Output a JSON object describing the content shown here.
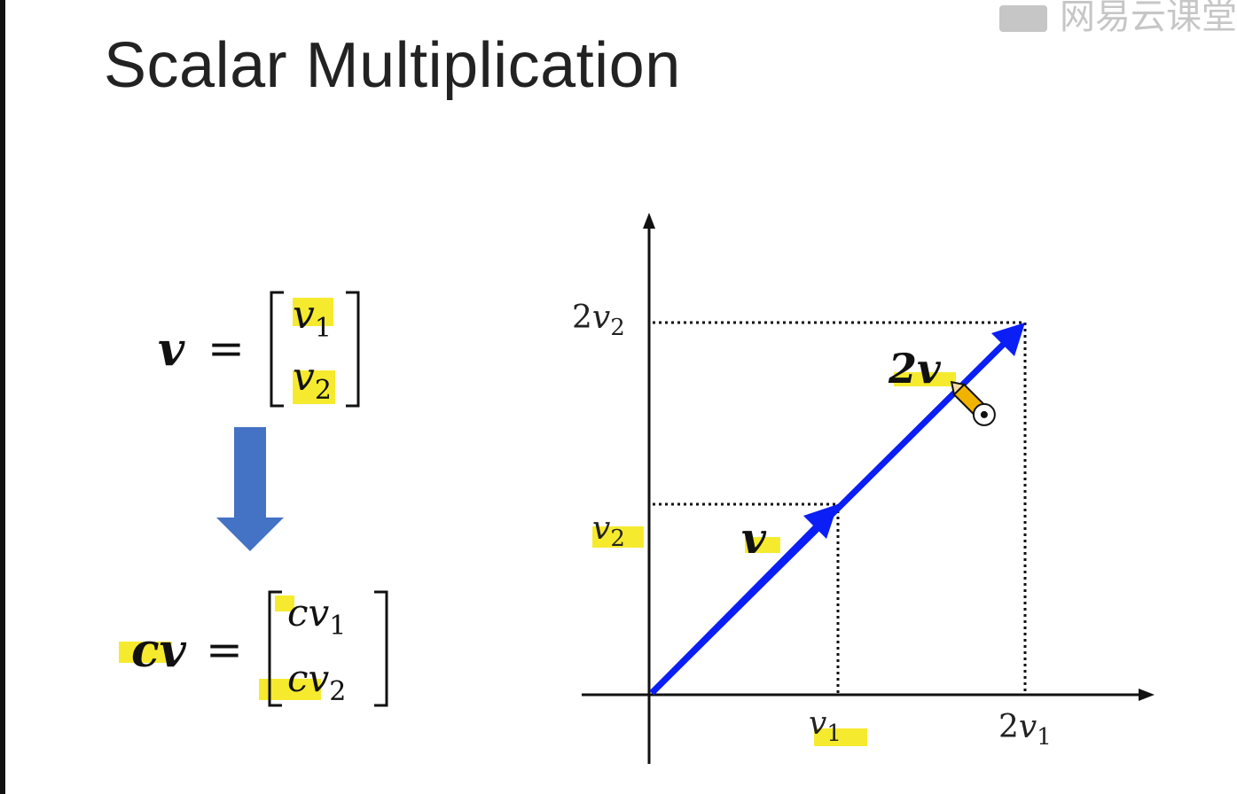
{
  "slide": {
    "title": "Scalar Multiplication",
    "watermark": "网易云课堂"
  },
  "equations": {
    "v_def": {
      "lhs": "v",
      "equals": "=",
      "top": {
        "sym": "v",
        "sub": "1"
      },
      "bottom": {
        "sym": "v",
        "sub": "2"
      }
    },
    "cv_def": {
      "lhs": "cv",
      "equals": "=",
      "top": {
        "sym": "cv",
        "sub": "1"
      },
      "bottom": {
        "sym": "cv",
        "sub": "2"
      }
    }
  },
  "graph": {
    "x_tick_1": {
      "sym": "v",
      "sub": "1"
    },
    "x_tick_2": {
      "coef": "2",
      "sym": "v",
      "sub": "1"
    },
    "y_tick_1": {
      "sym": "v",
      "sub": "2"
    },
    "y_tick_2": {
      "coef": "2",
      "sym": "v",
      "sub": "2"
    },
    "vector_label": "v",
    "scaled_vector_label": "2v"
  },
  "colors": {
    "vector": "#0a1ef5",
    "down_arrow": "#4472c4",
    "highlight": "#f5e60a",
    "axis": "#111111"
  }
}
